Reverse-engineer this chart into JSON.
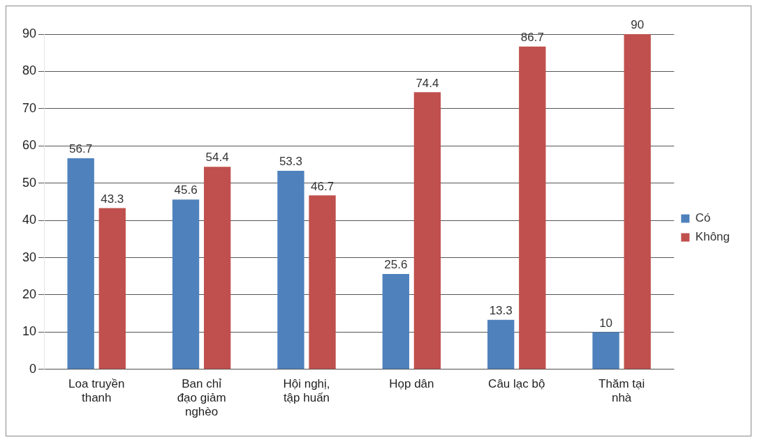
{
  "chart_data": {
    "type": "bar",
    "categories": [
      "Loa truyền thanh",
      "Ban chỉ đạo giảm nghèo",
      "Hội nghị, tập huấn",
      "Họp dân",
      "Câu lạc bộ",
      "Thăm tại nhà"
    ],
    "series": [
      {
        "name": "Có",
        "color": "#4f81bd",
        "values": [
          56.7,
          45.6,
          53.3,
          25.6,
          13.3,
          10
        ]
      },
      {
        "name": "Không",
        "color": "#c0504d",
        "values": [
          43.3,
          54.4,
          46.7,
          74.4,
          86.7,
          90
        ]
      }
    ],
    "ylim": [
      0,
      90
    ],
    "yticks": [
      0,
      10,
      20,
      30,
      40,
      50,
      60,
      70,
      80,
      90
    ],
    "grid": "y",
    "legend": "right",
    "data_labels": true
  }
}
